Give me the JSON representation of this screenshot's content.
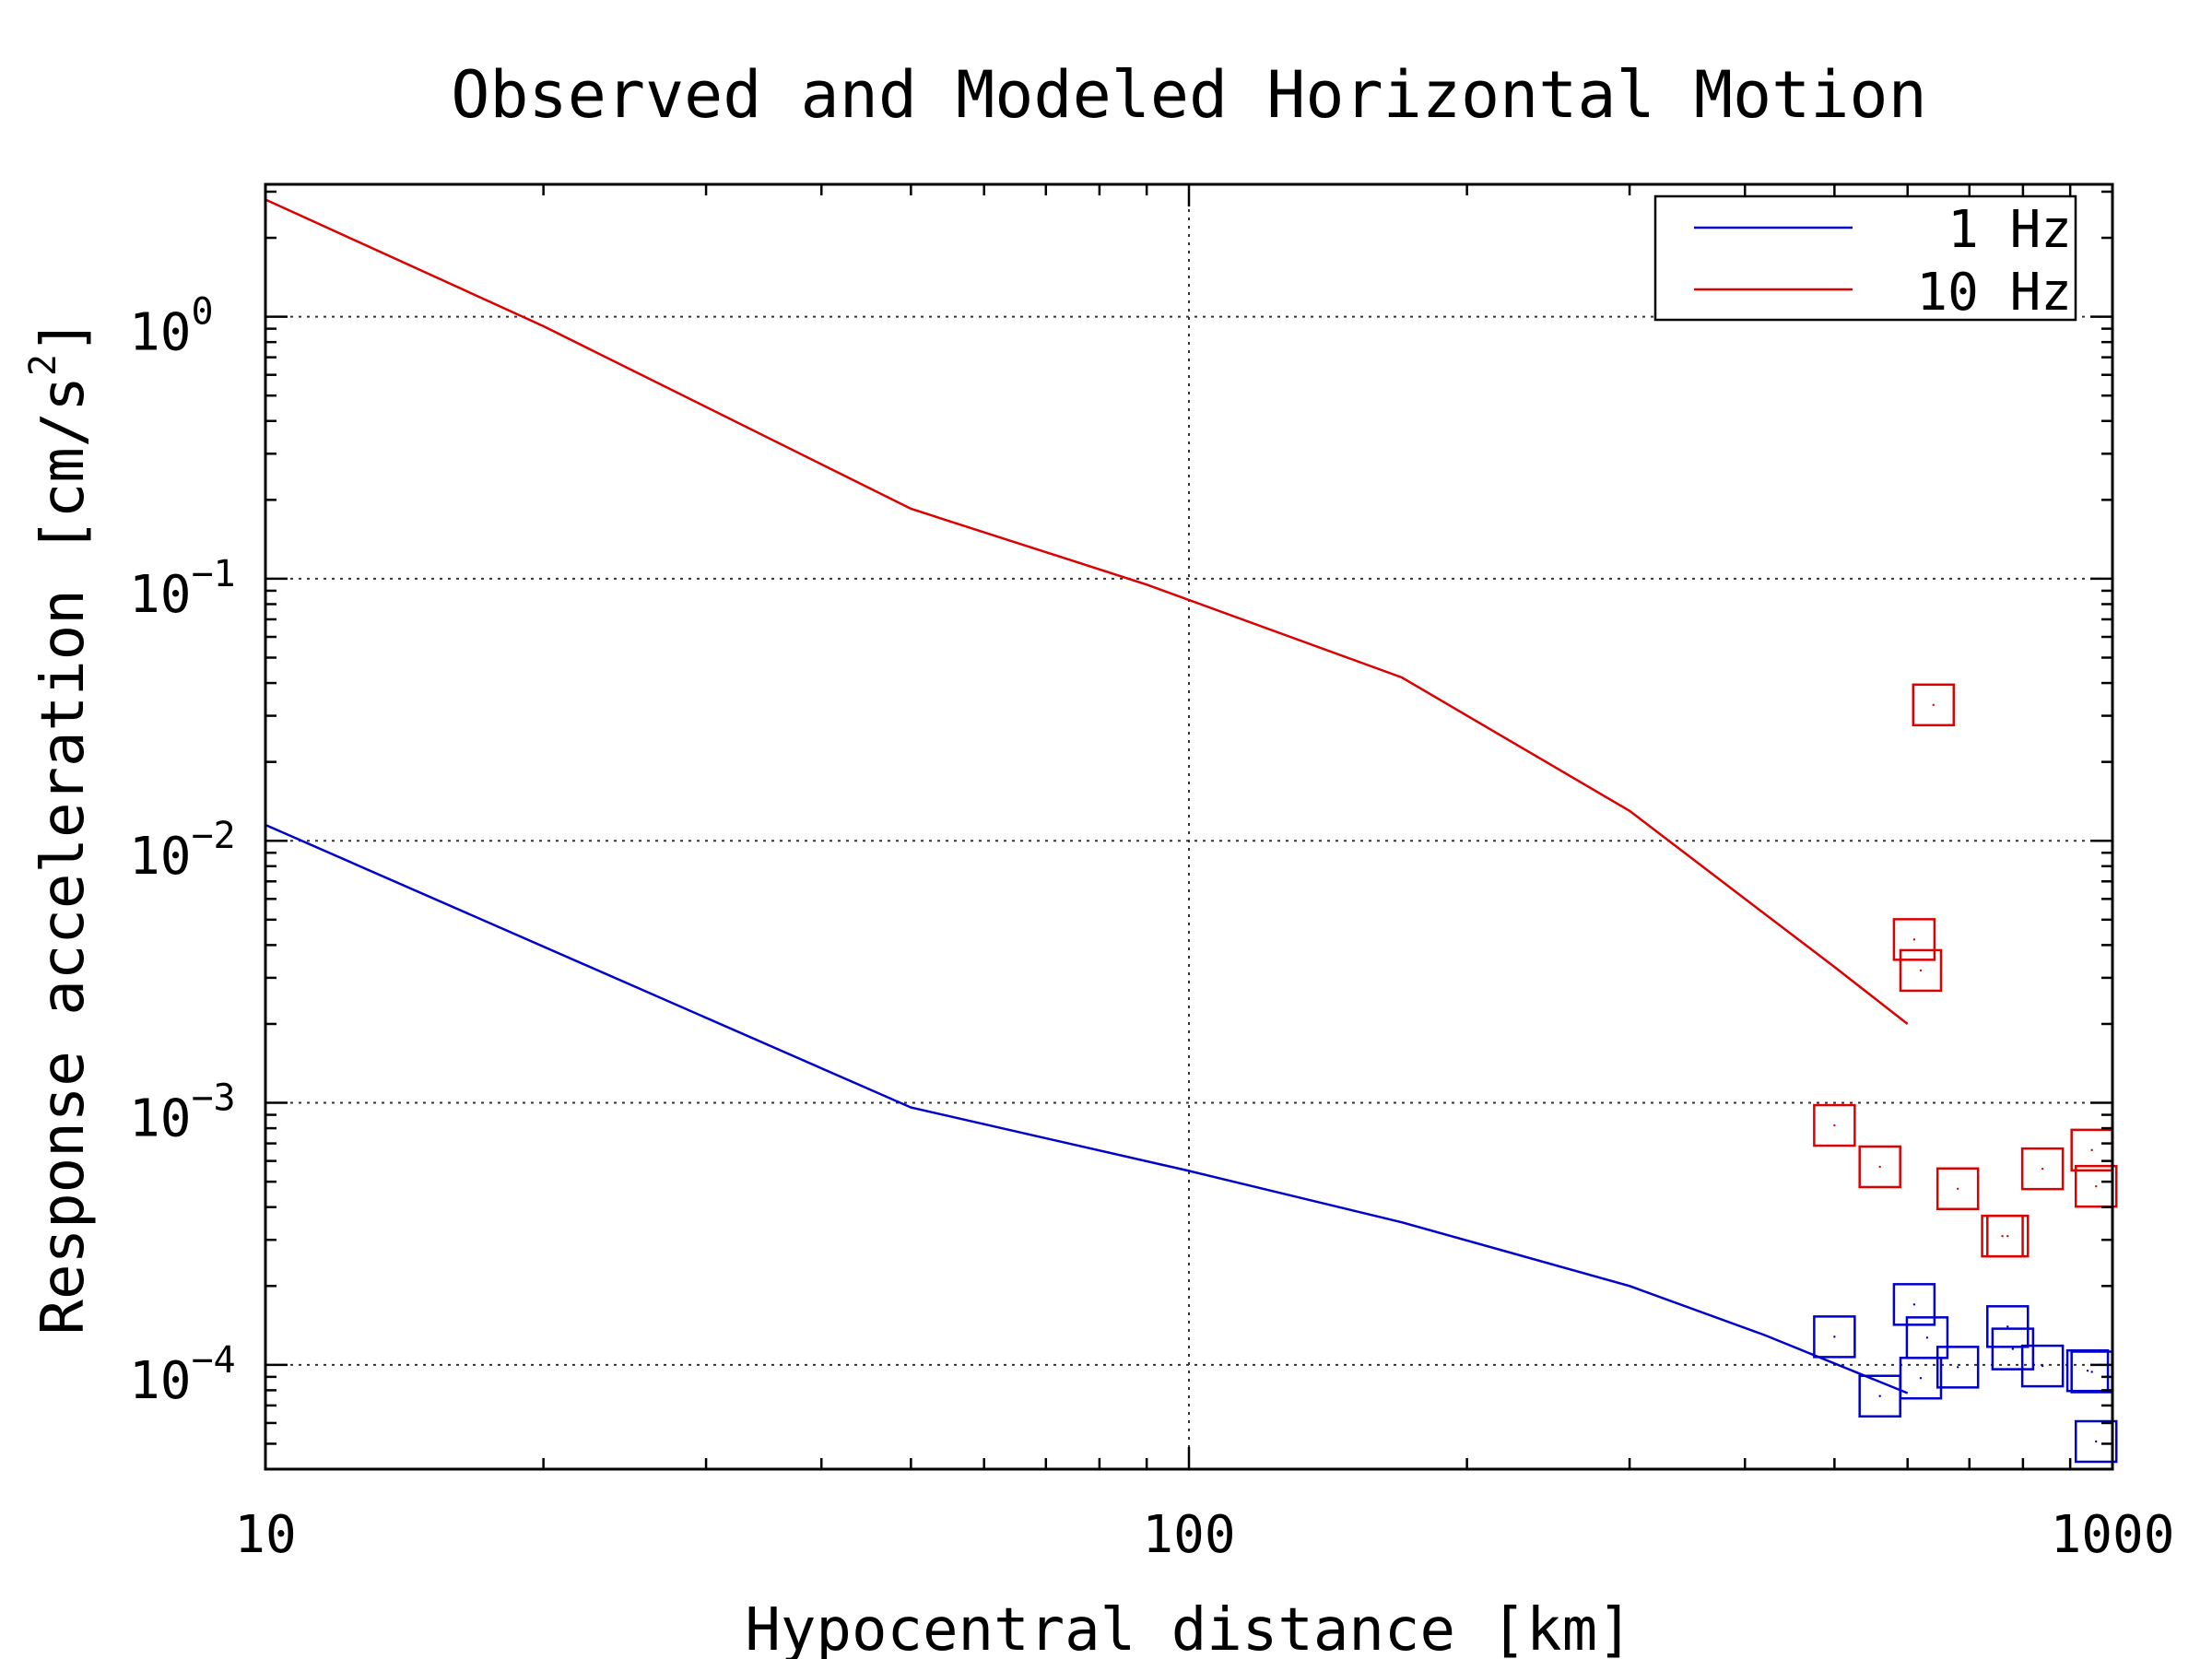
{
  "colors": {
    "series_1hz": "#0000cc",
    "series_10hz": "#dd0000",
    "axes": "#000000"
  },
  "chart_data": {
    "type": "line",
    "title": "Observed and Modeled Horizontal Motion",
    "xlabel": "Hypocentral distance [km]",
    "ylabel": "Response acceleration [cm/s²]",
    "ylabel_base": "Response acceleration [cm/s",
    "ylabel_sup": "2",
    "ylabel_end": "]",
    "xscale": "log",
    "yscale": "log",
    "xlim": [
      10,
      1000
    ],
    "ylim": [
      4e-05,
      3.2
    ],
    "grid": true,
    "legend_position": "top-right",
    "x_ticks": [
      {
        "value": 10,
        "label": "10"
      },
      {
        "value": 100,
        "label": "100"
      },
      {
        "value": 1000,
        "label": "1000"
      }
    ],
    "y_ticks": [
      {
        "value": 1,
        "base": "10",
        "exp": "0"
      },
      {
        "value": 0.1,
        "base": "10",
        "exp": "−1"
      },
      {
        "value": 0.01,
        "base": "10",
        "exp": "−2"
      },
      {
        "value": 0.001,
        "base": "10",
        "exp": "−3"
      },
      {
        "value": 0.0001,
        "base": "10",
        "exp": "−4"
      }
    ],
    "series": [
      {
        "name": "1 Hz",
        "color": "#0000cc",
        "line": {
          "x": [
            10,
            50,
            100,
            170,
            300,
            420,
            600
          ],
          "y": [
            0.0115,
            0.00096,
            0.00055,
            0.00035,
            0.0002,
            0.00013,
            7.8e-05
          ]
        },
        "observed": {
          "x": [
            500,
            560,
            610,
            620,
            630,
            680,
            770,
            780,
            840,
            940,
            950,
            960
          ],
          "y": [
            0.000128,
            7.6e-05,
            0.00017,
            8.9e-05,
            0.000127,
            9.8e-05,
            0.00014,
            0.000115,
            9.9e-05,
            9.5e-05,
            9.4e-05,
            5.1e-05
          ]
        }
      },
      {
        "name": "10 Hz",
        "color": "#dd0000",
        "line": {
          "x": [
            10,
            20,
            50,
            90,
            170,
            300,
            400,
            500,
            600
          ],
          "y": [
            2.8,
            0.92,
            0.185,
            0.095,
            0.042,
            0.013,
            0.006,
            0.0033,
            0.002
          ]
        },
        "observed": {
          "x": [
            500,
            560,
            610,
            620,
            640,
            680,
            760,
            770,
            840,
            950,
            960
          ],
          "y": [
            0.00082,
            0.00057,
            0.0042,
            0.0032,
            0.033,
            0.00047,
            0.00031,
            0.00031,
            0.00056,
            0.00066,
            0.00048
          ]
        }
      }
    ]
  }
}
